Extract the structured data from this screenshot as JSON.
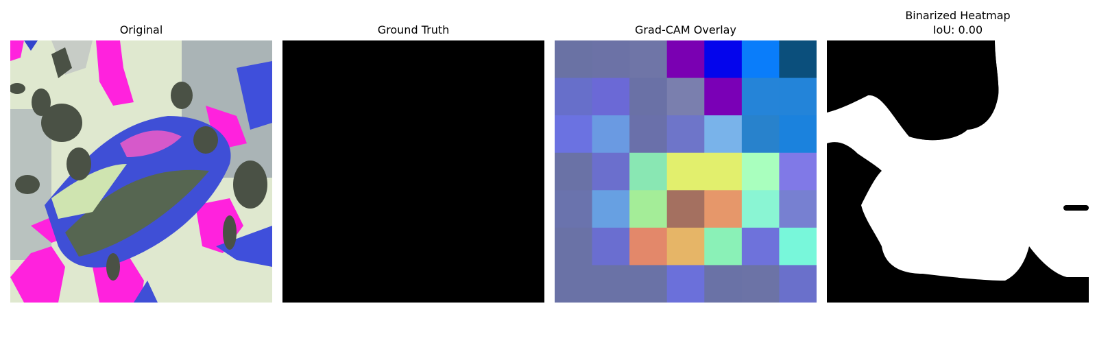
{
  "panels": [
    {
      "title": "Original"
    },
    {
      "title": "Ground Truth"
    },
    {
      "title": "Grad-CAM Overlay"
    },
    {
      "title": "Binarized Heatmap",
      "subtitle": "IoU: 0.00"
    }
  ],
  "gradcam_grid": [
    [
      "#6a72a4",
      "#6c72a6",
      "#6f75a7",
      "#7a00b2",
      "#0405ec",
      "#0a7dfa",
      "#0b4f7c"
    ],
    [
      "#676fca",
      "#6b69d6",
      "#6a71a6",
      "#7a7fae",
      "#7a00b6",
      "#2584d8",
      "#2384d9"
    ],
    [
      "#6b72e1",
      "#6a9ae2",
      "#6a70aa",
      "#6e75c9",
      "#79b3ea",
      "#2882cc",
      "#1b82dd"
    ],
    [
      "#6a72a6",
      "#6b6fcd",
      "#89e7b3",
      "#e2ef6d",
      "#e2ef6d",
      "#a9ffbe",
      "#8079e7"
    ],
    [
      "#6a73ad",
      "#67a0e2",
      "#a4ed98",
      "#a47060",
      "#e6976a",
      "#8af5d3",
      "#7780d1"
    ],
    [
      "#6a72a6",
      "#6a6ed0",
      "#e3886a",
      "#e6b567",
      "#8af1b7",
      "#6e72db",
      "#78f7da"
    ],
    [
      "#6a72a6",
      "#6a72a6",
      "#6a72a6",
      "#6b70da",
      "#6a72a6",
      "#6c73a6",
      "#6a70cb"
    ]
  ]
}
